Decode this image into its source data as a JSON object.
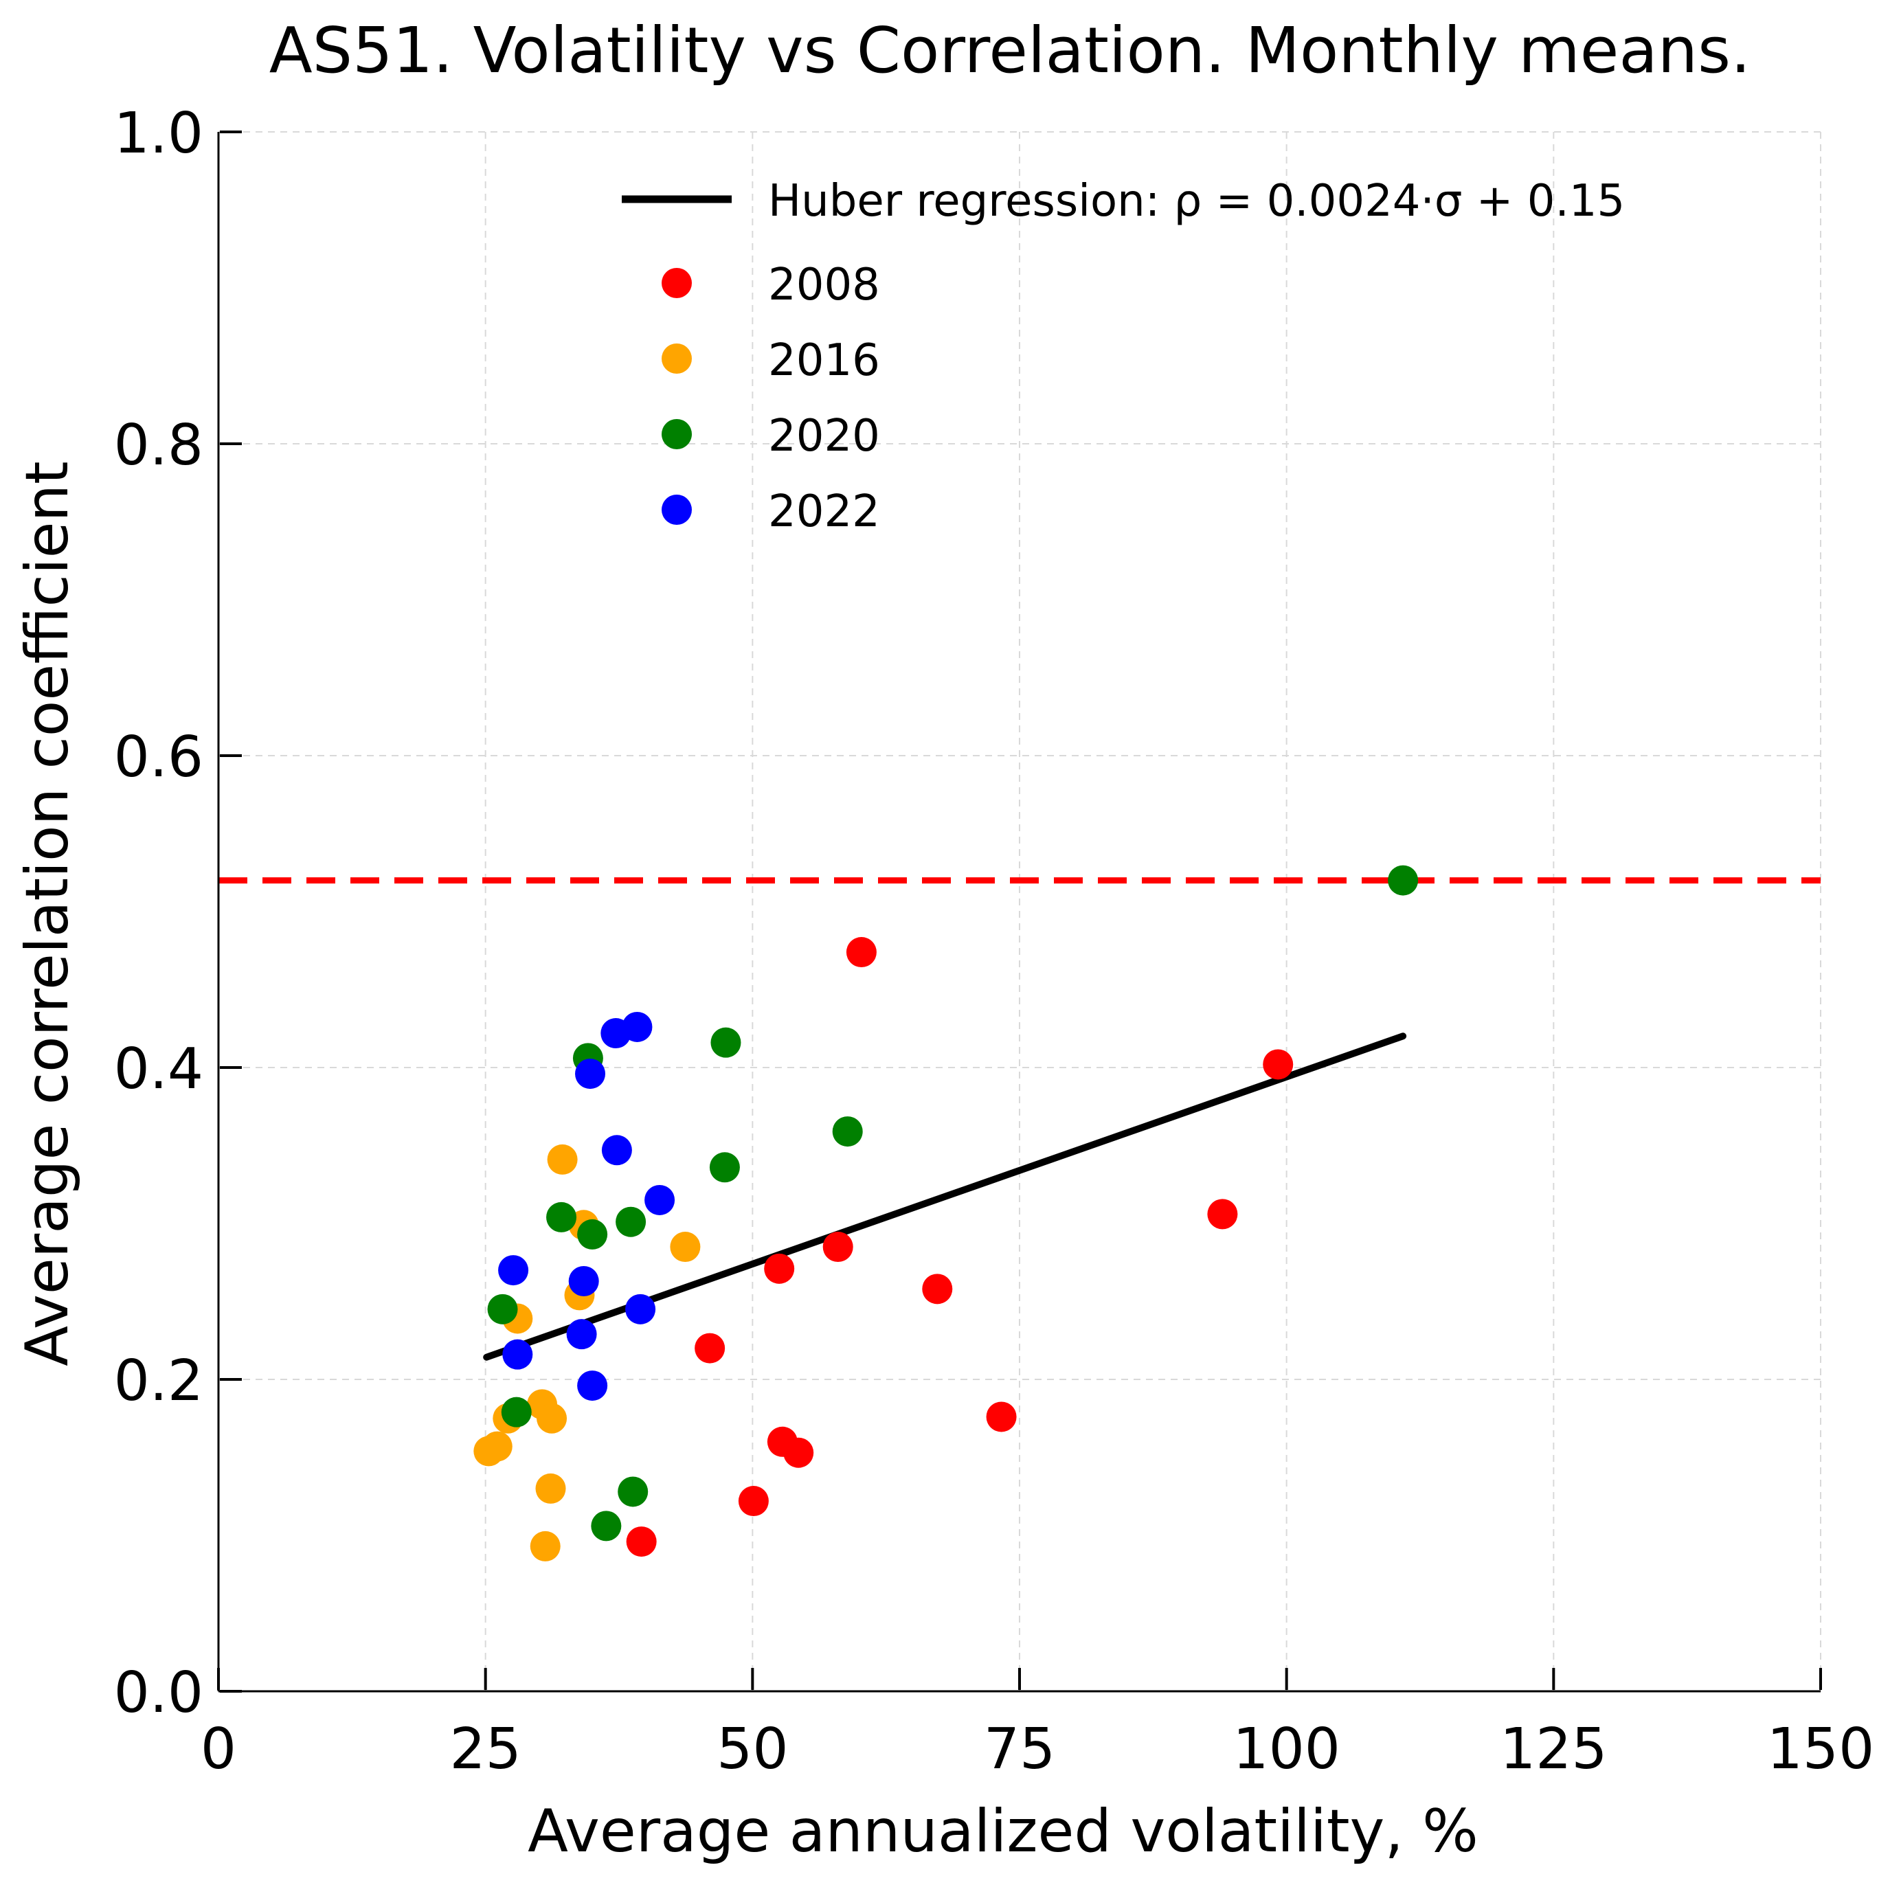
{
  "chart_data": {
    "type": "scatter",
    "title": "AS51. Volatility vs Correlation. Monthly means.",
    "xlabel": "Average annualized volatility, %",
    "ylabel": "Average correlation coefficient",
    "xlim": [
      0,
      150
    ],
    "ylim": [
      0.0,
      1.0
    ],
    "xticks": [
      "0",
      "25",
      "50",
      "75",
      "100",
      "125",
      "150"
    ],
    "yticks": [
      "0.0",
      "0.2",
      "0.4",
      "0.6",
      "0.8",
      "1.0"
    ],
    "grid": true,
    "legend_position": "top-right",
    "regression": {
      "label_prefix": "Huber regression: ",
      "label_formula": "ρ = 0.0024·σ + 0.15",
      "slope": 0.0024,
      "intercept": 0.154,
      "x_range": [
        25.1,
        110.9
      ],
      "color": "#000000"
    },
    "reference_line": {
      "y": 0.52,
      "color": "#ff0000",
      "style": "dashed"
    },
    "series": [
      {
        "name": "2008",
        "color": "#ff0000",
        "points": [
          [
            60.2,
            0.474
          ],
          [
            99.2,
            0.402
          ],
          [
            94.0,
            0.306
          ],
          [
            58.0,
            0.285
          ],
          [
            52.5,
            0.271
          ],
          [
            67.3,
            0.258
          ],
          [
            46.0,
            0.22
          ],
          [
            73.3,
            0.176
          ],
          [
            52.8,
            0.16
          ],
          [
            54.3,
            0.153
          ],
          [
            50.1,
            0.122
          ],
          [
            39.6,
            0.096
          ]
        ]
      },
      {
        "name": "2016",
        "color": "#ffa500",
        "points": [
          [
            32.2,
            0.341
          ],
          [
            34.2,
            0.299
          ],
          [
            43.7,
            0.285
          ],
          [
            33.8,
            0.254
          ],
          [
            28.0,
            0.239
          ],
          [
            30.3,
            0.184
          ],
          [
            27.1,
            0.175
          ],
          [
            31.2,
            0.175
          ],
          [
            26.1,
            0.157
          ],
          [
            25.3,
            0.154
          ],
          [
            31.1,
            0.13
          ],
          [
            30.6,
            0.093
          ]
        ]
      },
      {
        "name": "2020",
        "color": "#008000",
        "points": [
          [
            110.9,
            0.52
          ],
          [
            47.5,
            0.416
          ],
          [
            34.6,
            0.406
          ],
          [
            58.9,
            0.359
          ],
          [
            47.4,
            0.336
          ],
          [
            32.1,
            0.304
          ],
          [
            38.6,
            0.301
          ],
          [
            35.0,
            0.293
          ],
          [
            26.6,
            0.245
          ],
          [
            27.9,
            0.179
          ],
          [
            38.8,
            0.128
          ],
          [
            36.3,
            0.106
          ]
        ]
      },
      {
        "name": "2022",
        "color": "#0000ff",
        "points": [
          [
            39.2,
            0.426
          ],
          [
            37.2,
            0.422
          ],
          [
            34.8,
            0.396
          ],
          [
            37.3,
            0.347
          ],
          [
            41.3,
            0.315
          ],
          [
            27.6,
            0.27
          ],
          [
            34.2,
            0.263
          ],
          [
            39.5,
            0.245
          ],
          [
            34.0,
            0.229
          ],
          [
            28.0,
            0.216
          ],
          [
            35.0,
            0.196
          ]
        ]
      }
    ]
  }
}
